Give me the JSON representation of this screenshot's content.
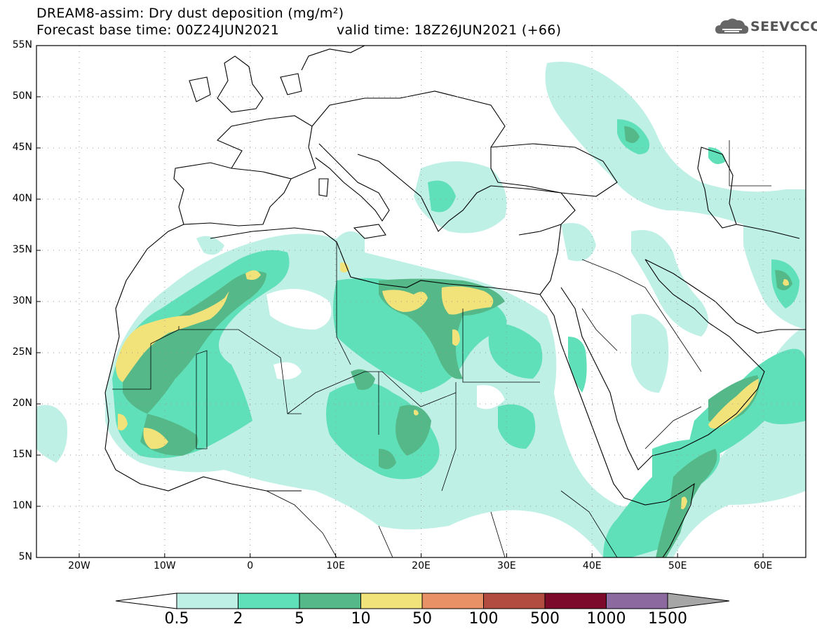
{
  "title": {
    "line1": "DREAM8-assim: Dry dust deposition (mg/m²)",
    "line2": "Forecast base time: 00Z24JUN2021",
    "line3": "valid time: 18Z26JUN2021 (+66)"
  },
  "logo": {
    "text": "SEEVCCC",
    "icon": "cloud-icon"
  },
  "axes": {
    "lat_ticks": [
      "55N",
      "50N",
      "45N",
      "40N",
      "35N",
      "30N",
      "25N",
      "20N",
      "15N",
      "10N",
      "5N"
    ],
    "lon_ticks": [
      "20W",
      "10W",
      "0",
      "10E",
      "20E",
      "30E",
      "40E",
      "50E",
      "60E"
    ],
    "grid": "dotted"
  },
  "colorbar": {
    "labels": [
      "0.5",
      "2",
      "5",
      "10",
      "50",
      "100",
      "500",
      "1000",
      "1500"
    ],
    "colors": [
      "#bff0e6",
      "#5fe0b8",
      "#55b888",
      "#f2e27a",
      "#e89066",
      "#b24c40",
      "#7c0a2a",
      "#8c6aa0"
    ],
    "under_color": "#ffffff",
    "over_color": "#a6a6a6"
  },
  "colors": {
    "c1": "#bff0e6",
    "c2": "#5fe0b8",
    "c3": "#55b888",
    "c4": "#f2e27a"
  }
}
